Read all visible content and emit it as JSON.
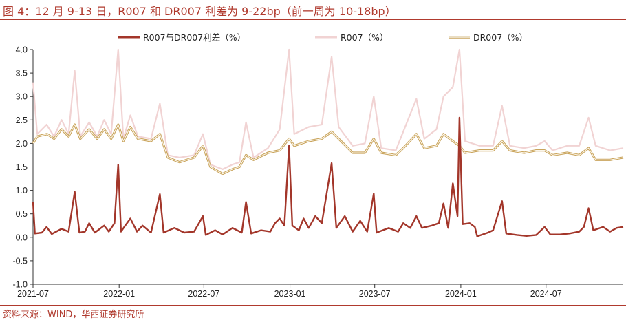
{
  "title": "图 4：12 月 9-13 日，R007 和 DR007 利差为 9-22bp（前一周为 10-18bp）",
  "source": "资料来源：WIND，华西证券研究所",
  "colors": {
    "accent": "#b03a2e",
    "spread": "#a3362a",
    "r007": "#f1d3d3",
    "dr007": "#c9a45c"
  },
  "chart_data": {
    "type": "line",
    "x_range": [
      "2021-07-01",
      "2024-12-13"
    ],
    "x_tick_labels": [
      "2021-07",
      "2022-01",
      "2022-07",
      "2023-01",
      "2023-07",
      "2024-01",
      "2024-07"
    ],
    "ylim": [
      -1.0,
      4.0
    ],
    "y_tick_labels": [
      "4.0",
      "3.5",
      "3.0",
      "2.5",
      "2.0",
      "1.5",
      "1.0",
      "0.5",
      "0.0",
      "-0.5",
      "-1.0"
    ],
    "legend_position": "top",
    "series": [
      {
        "name": "R007与DR007利差（%）",
        "points": [
          [
            "2021-07-01",
            0.75
          ],
          [
            "2021-07-05",
            0.08
          ],
          [
            "2021-07-20",
            0.1
          ],
          [
            "2021-07-30",
            0.22
          ],
          [
            "2021-08-10",
            0.07
          ],
          [
            "2021-08-31",
            0.18
          ],
          [
            "2021-09-15",
            0.12
          ],
          [
            "2021-09-28",
            0.97
          ],
          [
            "2021-10-08",
            0.1
          ],
          [
            "2021-10-20",
            0.12
          ],
          [
            "2021-10-29",
            0.3
          ],
          [
            "2021-11-10",
            0.1
          ],
          [
            "2021-11-30",
            0.25
          ],
          [
            "2021-12-10",
            0.12
          ],
          [
            "2021-12-22",
            0.3
          ],
          [
            "2021-12-30",
            1.55
          ],
          [
            "2022-01-05",
            0.12
          ],
          [
            "2022-01-14",
            0.25
          ],
          [
            "2022-01-25",
            0.4
          ],
          [
            "2022-02-08",
            0.12
          ],
          [
            "2022-02-20",
            0.25
          ],
          [
            "2022-03-10",
            0.1
          ],
          [
            "2022-03-29",
            0.92
          ],
          [
            "2022-04-06",
            0.1
          ],
          [
            "2022-04-29",
            0.2
          ],
          [
            "2022-05-20",
            0.1
          ],
          [
            "2022-06-10",
            0.12
          ],
          [
            "2022-06-29",
            0.45
          ],
          [
            "2022-07-05",
            0.05
          ],
          [
            "2022-07-25",
            0.15
          ],
          [
            "2022-08-10",
            0.06
          ],
          [
            "2022-08-31",
            0.2
          ],
          [
            "2022-09-20",
            0.1
          ],
          [
            "2022-09-29",
            0.75
          ],
          [
            "2022-10-10",
            0.08
          ],
          [
            "2022-10-31",
            0.15
          ],
          [
            "2022-11-20",
            0.12
          ],
          [
            "2022-11-30",
            0.3
          ],
          [
            "2022-12-10",
            0.4
          ],
          [
            "2022-12-20",
            0.25
          ],
          [
            "2022-12-30",
            1.95
          ],
          [
            "2023-01-06",
            0.25
          ],
          [
            "2023-01-20",
            0.15
          ],
          [
            "2023-01-30",
            0.4
          ],
          [
            "2023-02-10",
            0.2
          ],
          [
            "2023-02-24",
            0.45
          ],
          [
            "2023-03-10",
            0.3
          ],
          [
            "2023-03-31",
            1.58
          ],
          [
            "2023-04-10",
            0.2
          ],
          [
            "2023-04-28",
            0.45
          ],
          [
            "2023-05-15",
            0.12
          ],
          [
            "2023-05-31",
            0.35
          ],
          [
            "2023-06-15",
            0.12
          ],
          [
            "2023-06-29",
            0.93
          ],
          [
            "2023-07-05",
            0.1
          ],
          [
            "2023-07-31",
            0.2
          ],
          [
            "2023-08-20",
            0.12
          ],
          [
            "2023-08-31",
            0.3
          ],
          [
            "2023-09-15",
            0.2
          ],
          [
            "2023-09-28",
            0.45
          ],
          [
            "2023-10-10",
            0.2
          ],
          [
            "2023-10-31",
            0.25
          ],
          [
            "2023-11-15",
            0.3
          ],
          [
            "2023-11-25",
            0.72
          ],
          [
            "2023-12-05",
            0.2
          ],
          [
            "2023-12-15",
            1.15
          ],
          [
            "2023-12-25",
            0.45
          ],
          [
            "2023-12-29",
            2.55
          ],
          [
            "2024-01-05",
            0.28
          ],
          [
            "2024-01-20",
            0.3
          ],
          [
            "2024-01-31",
            0.22
          ],
          [
            "2024-02-05",
            0.02
          ],
          [
            "2024-02-28",
            0.1
          ],
          [
            "2024-03-10",
            0.15
          ],
          [
            "2024-03-29",
            0.77
          ],
          [
            "2024-04-07",
            0.08
          ],
          [
            "2024-04-30",
            0.05
          ],
          [
            "2024-05-20",
            0.03
          ],
          [
            "2024-06-10",
            0.05
          ],
          [
            "2024-06-28",
            0.22
          ],
          [
            "2024-07-10",
            0.06
          ],
          [
            "2024-07-31",
            0.06
          ],
          [
            "2024-08-20",
            0.08
          ],
          [
            "2024-09-10",
            0.12
          ],
          [
            "2024-09-20",
            0.22
          ],
          [
            "2024-09-30",
            0.62
          ],
          [
            "2024-10-10",
            0.15
          ],
          [
            "2024-10-31",
            0.22
          ],
          [
            "2024-11-15",
            0.12
          ],
          [
            "2024-11-29",
            0.2
          ],
          [
            "2024-12-13",
            0.22
          ]
        ]
      },
      {
        "name": "R007（%）",
        "points": [
          [
            "2021-07-01",
            3.3
          ],
          [
            "2021-07-10",
            2.2
          ],
          [
            "2021-07-30",
            2.4
          ],
          [
            "2021-08-15",
            2.15
          ],
          [
            "2021-08-31",
            2.5
          ],
          [
            "2021-09-15",
            2.2
          ],
          [
            "2021-09-28",
            3.55
          ],
          [
            "2021-10-10",
            2.15
          ],
          [
            "2021-10-29",
            2.45
          ],
          [
            "2021-11-15",
            2.15
          ],
          [
            "2021-11-30",
            2.5
          ],
          [
            "2021-12-15",
            2.2
          ],
          [
            "2021-12-30",
            4.0
          ],
          [
            "2022-01-10",
            2.1
          ],
          [
            "2022-01-25",
            2.6
          ],
          [
            "2022-02-10",
            2.15
          ],
          [
            "2022-03-10",
            2.1
          ],
          [
            "2022-03-29",
            2.85
          ],
          [
            "2022-04-15",
            1.75
          ],
          [
            "2022-05-10",
            1.7
          ],
          [
            "2022-06-10",
            1.75
          ],
          [
            "2022-06-29",
            2.2
          ],
          [
            "2022-07-15",
            1.55
          ],
          [
            "2022-08-10",
            1.45
          ],
          [
            "2022-08-31",
            1.55
          ],
          [
            "2022-09-15",
            1.6
          ],
          [
            "2022-09-29",
            2.45
          ],
          [
            "2022-10-15",
            1.7
          ],
          [
            "2022-11-15",
            1.9
          ],
          [
            "2022-12-10",
            2.3
          ],
          [
            "2022-12-30",
            4.0
          ],
          [
            "2023-01-10",
            2.2
          ],
          [
            "2023-02-10",
            2.35
          ],
          [
            "2023-03-10",
            2.4
          ],
          [
            "2023-03-31",
            3.85
          ],
          [
            "2023-04-15",
            2.35
          ],
          [
            "2023-05-15",
            1.95
          ],
          [
            "2023-06-10",
            2.0
          ],
          [
            "2023-06-29",
            3.0
          ],
          [
            "2023-07-15",
            1.9
          ],
          [
            "2023-08-15",
            1.85
          ],
          [
            "2023-08-31",
            2.25
          ],
          [
            "2023-09-28",
            2.95
          ],
          [
            "2023-10-15",
            2.1
          ],
          [
            "2023-11-10",
            2.3
          ],
          [
            "2023-11-25",
            3.0
          ],
          [
            "2023-12-15",
            3.2
          ],
          [
            "2023-12-29",
            4.0
          ],
          [
            "2024-01-10",
            2.05
          ],
          [
            "2024-02-10",
            1.95
          ],
          [
            "2024-03-10",
            1.95
          ],
          [
            "2024-03-29",
            2.8
          ],
          [
            "2024-04-15",
            1.95
          ],
          [
            "2024-05-15",
            1.9
          ],
          [
            "2024-06-10",
            1.95
          ],
          [
            "2024-06-28",
            2.05
          ],
          [
            "2024-07-15",
            1.85
          ],
          [
            "2024-08-15",
            1.95
          ],
          [
            "2024-09-10",
            1.95
          ],
          [
            "2024-09-30",
            2.55
          ],
          [
            "2024-10-15",
            1.95
          ],
          [
            "2024-11-15",
            1.85
          ],
          [
            "2024-12-13",
            1.9
          ]
        ]
      },
      {
        "name": "DR007（%）",
        "points": [
          [
            "2021-07-01",
            2.0
          ],
          [
            "2021-07-10",
            2.15
          ],
          [
            "2021-07-31",
            2.2
          ],
          [
            "2021-08-15",
            2.1
          ],
          [
            "2021-08-31",
            2.3
          ],
          [
            "2021-09-15",
            2.15
          ],
          [
            "2021-09-28",
            2.4
          ],
          [
            "2021-10-10",
            2.1
          ],
          [
            "2021-10-29",
            2.3
          ],
          [
            "2021-11-15",
            2.1
          ],
          [
            "2021-11-30",
            2.3
          ],
          [
            "2021-12-15",
            2.1
          ],
          [
            "2021-12-30",
            2.4
          ],
          [
            "2022-01-10",
            2.05
          ],
          [
            "2022-01-25",
            2.35
          ],
          [
            "2022-02-10",
            2.1
          ],
          [
            "2022-03-10",
            2.05
          ],
          [
            "2022-03-29",
            2.2
          ],
          [
            "2022-04-15",
            1.7
          ],
          [
            "2022-05-10",
            1.6
          ],
          [
            "2022-06-10",
            1.7
          ],
          [
            "2022-06-29",
            1.95
          ],
          [
            "2022-07-15",
            1.5
          ],
          [
            "2022-08-10",
            1.35
          ],
          [
            "2022-08-31",
            1.45
          ],
          [
            "2022-09-15",
            1.5
          ],
          [
            "2022-09-29",
            1.75
          ],
          [
            "2022-10-15",
            1.65
          ],
          [
            "2022-11-15",
            1.8
          ],
          [
            "2022-12-10",
            1.85
          ],
          [
            "2022-12-30",
            2.1
          ],
          [
            "2023-01-10",
            1.95
          ],
          [
            "2023-02-10",
            2.05
          ],
          [
            "2023-03-10",
            2.1
          ],
          [
            "2023-03-31",
            2.25
          ],
          [
            "2023-04-15",
            2.1
          ],
          [
            "2023-05-15",
            1.8
          ],
          [
            "2023-06-10",
            1.8
          ],
          [
            "2023-06-29",
            2.1
          ],
          [
            "2023-07-15",
            1.8
          ],
          [
            "2023-08-15",
            1.75
          ],
          [
            "2023-08-31",
            1.9
          ],
          [
            "2023-09-28",
            2.2
          ],
          [
            "2023-10-15",
            1.9
          ],
          [
            "2023-11-10",
            1.95
          ],
          [
            "2023-11-25",
            2.2
          ],
          [
            "2023-12-15",
            2.05
          ],
          [
            "2023-12-29",
            1.95
          ],
          [
            "2024-01-10",
            1.8
          ],
          [
            "2024-02-10",
            1.85
          ],
          [
            "2024-03-10",
            1.85
          ],
          [
            "2024-03-29",
            2.05
          ],
          [
            "2024-04-15",
            1.85
          ],
          [
            "2024-05-15",
            1.8
          ],
          [
            "2024-06-10",
            1.85
          ],
          [
            "2024-06-28",
            1.85
          ],
          [
            "2024-07-15",
            1.75
          ],
          [
            "2024-08-15",
            1.8
          ],
          [
            "2024-09-10",
            1.75
          ],
          [
            "2024-09-30",
            1.9
          ],
          [
            "2024-10-15",
            1.65
          ],
          [
            "2024-11-15",
            1.65
          ],
          [
            "2024-12-13",
            1.7
          ]
        ]
      }
    ]
  }
}
